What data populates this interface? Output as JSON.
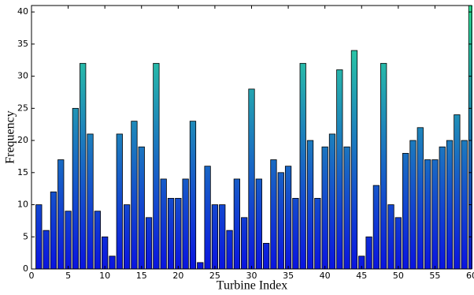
{
  "chart_data": {
    "type": "bar",
    "xlabel": "Turbine Index",
    "ylabel": "Frequency",
    "x": [
      1,
      2,
      3,
      4,
      5,
      6,
      7,
      8,
      9,
      10,
      11,
      12,
      13,
      14,
      15,
      16,
      17,
      18,
      19,
      20,
      21,
      22,
      23,
      24,
      25,
      26,
      27,
      28,
      29,
      30,
      31,
      32,
      33,
      34,
      35,
      36,
      37,
      38,
      39,
      40,
      41,
      42,
      43,
      44,
      45,
      46,
      47,
      48,
      49,
      50,
      51,
      52,
      53,
      54,
      55,
      56,
      57,
      58,
      59,
      60
    ],
    "values": [
      10,
      6,
      12,
      17,
      9,
      25,
      32,
      21,
      9,
      5,
      2,
      21,
      10,
      23,
      19,
      8,
      32,
      14,
      11,
      11,
      14,
      23,
      1,
      16,
      10,
      10,
      6,
      14,
      8,
      28,
      14,
      4,
      17,
      15,
      16,
      11,
      32,
      20,
      11,
      19,
      21,
      31,
      19,
      34,
      2,
      5,
      13,
      32,
      10,
      8,
      18,
      20,
      22,
      17,
      17,
      19,
      20,
      24,
      20,
      41
    ],
    "xlim": [
      0,
      60
    ],
    "ylim": [
      0,
      41
    ],
    "xticks": [
      0,
      5,
      10,
      15,
      20,
      25,
      30,
      35,
      40,
      45,
      50,
      55,
      60
    ],
    "yticks": [
      0,
      5,
      10,
      15,
      20,
      25,
      30,
      35,
      40
    ],
    "colors": [
      "#0a14e0",
      "#30e89a"
    ]
  }
}
